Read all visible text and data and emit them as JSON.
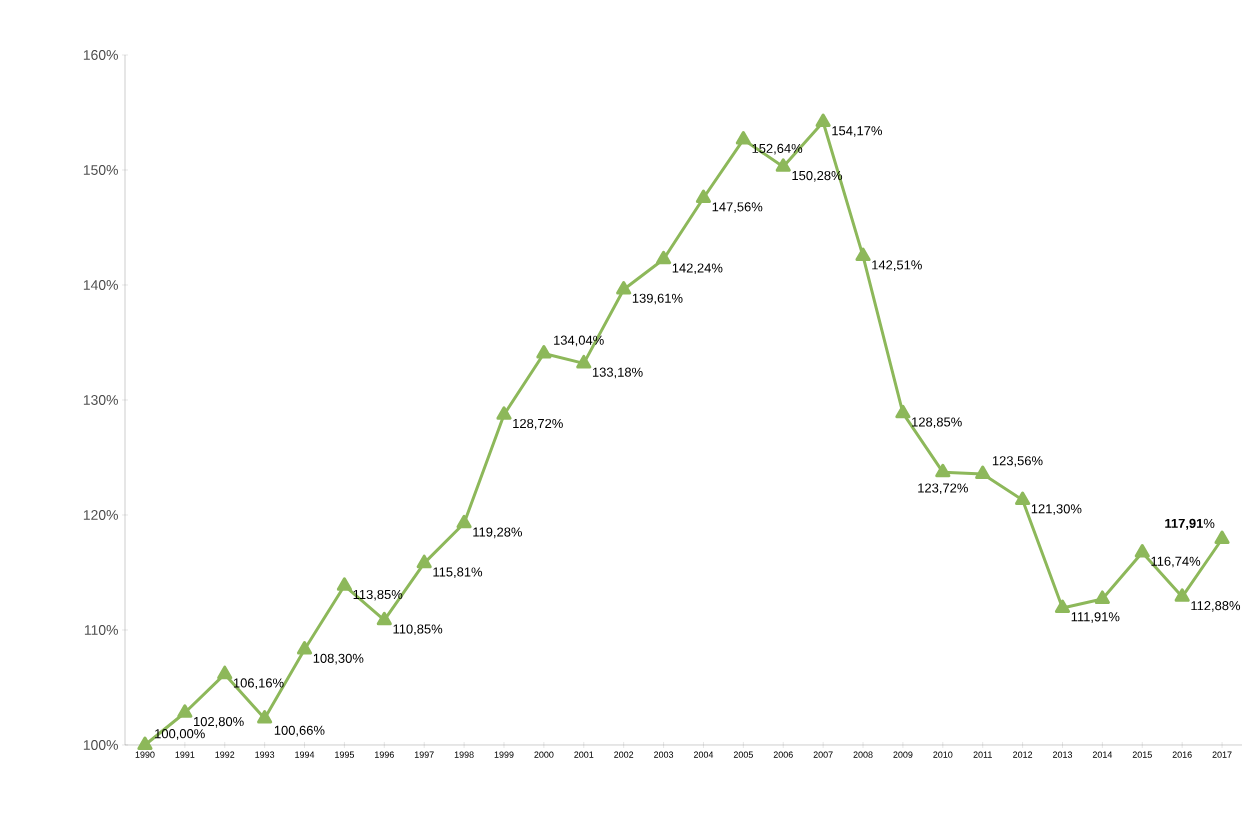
{
  "chart_data": {
    "type": "line",
    "categories": [
      "1990",
      "1991",
      "1992",
      "1993",
      "1994",
      "1995",
      "1996",
      "1997",
      "1998",
      "1999",
      "2000",
      "2001",
      "2002",
      "2003",
      "2004",
      "2005",
      "2006",
      "2007",
      "2008",
      "2009",
      "2010",
      "2011",
      "2012",
      "2013",
      "2014",
      "2015",
      "2016",
      "2017"
    ],
    "values": [
      100.0,
      102.8,
      106.16,
      102.3,
      108.3,
      113.85,
      110.85,
      115.81,
      119.28,
      128.72,
      134.04,
      133.18,
      139.61,
      142.24,
      147.56,
      152.64,
      150.28,
      154.17,
      142.51,
      128.85,
      123.72,
      123.56,
      121.3,
      111.91,
      112.7,
      116.74,
      112.88,
      117.91
    ],
    "value_labels": [
      "100,00%",
      "102,80%",
      "106,16%",
      null,
      "108,30%",
      "113,85%",
      "110,85%",
      "115,81%",
      "119,28%",
      "128,72%",
      "134,04%",
      "133,18%",
      "139,61%",
      "142,24%",
      "147,56%",
      "152,64%",
      "150,28%",
      "154,17%",
      "142,51%",
      "128,85%",
      "123,72%",
      "123,56%",
      "121,30%",
      "111,91%",
      null,
      "116,74%",
      "112,88%",
      "**117,91**%"
    ],
    "annotations": [
      "100,66%"
    ],
    "color": "#8db85a",
    "marker": "triangle",
    "line_style": "solid",
    "grid": false,
    "ylim": [
      100,
      160
    ],
    "yticks": [
      {
        "value": 100,
        "label": "100%"
      },
      {
        "value": 110,
        "label": "110%"
      },
      {
        "value": 120,
        "label": "120%"
      },
      {
        "value": 130,
        "label": "130%"
      },
      {
        "value": 140,
        "label": "140%"
      },
      {
        "value": 150,
        "label": "150%"
      },
      {
        "value": 160,
        "label": "160%"
      }
    ]
  }
}
